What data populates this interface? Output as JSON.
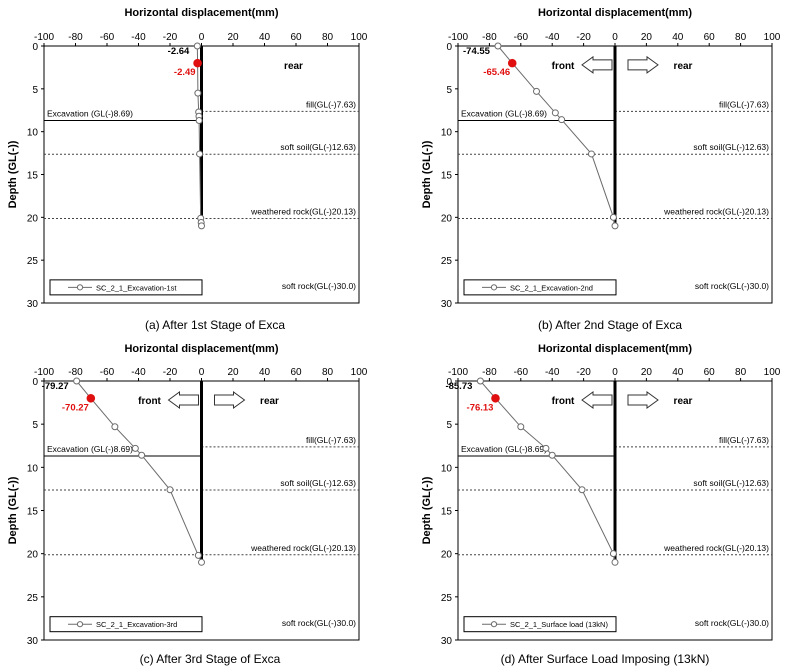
{
  "figure": {
    "axis_title_x": "Horizontal displacement(mm)",
    "axis_title_y": "Depth (GL(-))"
  },
  "colors": {
    "wall": "#000000",
    "curve": "#6b6b6b",
    "marker_fill": "#ffffff",
    "highlight": "#e01010",
    "dotted_line": "#444444"
  },
  "icons": [
    "arrow-left-icon",
    "arrow-right-icon"
  ],
  "chart_data": [
    {
      "type": "line",
      "caption": "(a) After 1st Stage of Exca",
      "xlabel": "Horizontal displacement(mm)",
      "ylabel": "Depth (GL(-))",
      "xlim": [
        -100,
        100
      ],
      "ylim": [
        30,
        0
      ],
      "xticks": [
        -100,
        -80,
        -60,
        -40,
        -20,
        0,
        20,
        40,
        60,
        80,
        100
      ],
      "yticks": [
        0,
        5,
        10,
        15,
        20,
        25,
        30
      ],
      "legend": {
        "label": "SC_2_1_Excavation-1st",
        "position": "bottom-left"
      },
      "series": [
        {
          "name": "SC_2_1_Excavation-1st",
          "x": [
            -2.64,
            -2.49,
            -2.3,
            -1.8,
            -1.6,
            -1.5,
            -1.2,
            -0.5,
            -0.2,
            0
          ],
          "y": [
            0,
            2,
            5.5,
            7.7,
            8.2,
            8.7,
            12.6,
            20.1,
            20.6,
            21
          ]
        }
      ],
      "annotations": [
        {
          "text": "-2.64",
          "x": -2.64,
          "y": 0,
          "highlight": false
        },
        {
          "text": "-2.49",
          "x": -2.49,
          "y": 2,
          "highlight": true
        }
      ],
      "direction_labels": {
        "front": "",
        "rear": "rear",
        "show_arrows": false
      },
      "excavation": {
        "label": "Excavation (GL(-)8.69)",
        "depth": 8.69
      },
      "layers": [
        {
          "label": "fill(GL(-)7.63)",
          "depth": 7.63
        },
        {
          "label": "soft soil(GL(-)12.63)",
          "depth": 12.63
        },
        {
          "label": "weathered rock(GL(-)20.13)",
          "depth": 20.13
        },
        {
          "label": "soft rock(GL(-)30.0)",
          "depth": 30
        }
      ]
    },
    {
      "type": "line",
      "caption": "(b) After 2nd Stage of Exca",
      "xlabel": "Horizontal displacement(mm)",
      "ylabel": "Depth (GL(-))",
      "xlim": [
        -100,
        100
      ],
      "ylim": [
        30,
        0
      ],
      "xticks": [
        -100,
        -80,
        -60,
        -40,
        -20,
        0,
        20,
        40,
        60,
        80,
        100
      ],
      "yticks": [
        0,
        5,
        10,
        15,
        20,
        25,
        30
      ],
      "legend": {
        "label": "SC_2_1_Excavation-2nd",
        "position": "bottom-left"
      },
      "series": [
        {
          "name": "SC_2_1_Excavation-2nd",
          "x": [
            -74.55,
            -65.46,
            -50,
            -38,
            -34,
            -15,
            -1,
            0
          ],
          "y": [
            0,
            2,
            5.3,
            7.8,
            8.6,
            12.6,
            20,
            21
          ]
        }
      ],
      "annotations": [
        {
          "text": "-74.55",
          "x": -74.55,
          "y": 0,
          "highlight": false
        },
        {
          "text": "-65.46",
          "x": -65.46,
          "y": 2,
          "highlight": true
        }
      ],
      "direction_labels": {
        "front": "front",
        "rear": "rear",
        "show_arrows": true
      },
      "excavation": {
        "label": "Excavation (GL(-)8.69)",
        "depth": 8.69
      },
      "layers": [
        {
          "label": "fill(GL(-)7.63)",
          "depth": 7.63
        },
        {
          "label": "soft soil(GL(-)12.63)",
          "depth": 12.63
        },
        {
          "label": "weathered rock(GL(-)20.13)",
          "depth": 20.13
        },
        {
          "label": "soft rock(GL(-)30.0)",
          "depth": 30
        }
      ]
    },
    {
      "type": "line",
      "caption": "(c) After 3rd Stage of Exca",
      "xlabel": "Horizontal displacement(mm)",
      "ylabel": "Depth (GL(-))",
      "xlim": [
        -100,
        100
      ],
      "ylim": [
        30,
        0
      ],
      "xticks": [
        -100,
        -80,
        -60,
        -40,
        -20,
        0,
        20,
        40,
        60,
        80,
        100
      ],
      "yticks": [
        0,
        5,
        10,
        15,
        20,
        25,
        30
      ],
      "legend": {
        "label": "SC_2_1_Excavation-3rd",
        "position": "bottom-left"
      },
      "series": [
        {
          "name": "SC_2_1_Excavation-3rd",
          "x": [
            -79.27,
            -70.27,
            -55,
            -42,
            -38,
            -20,
            -2,
            0
          ],
          "y": [
            0,
            2,
            5.3,
            7.8,
            8.6,
            12.6,
            20.2,
            21
          ]
        }
      ],
      "annotations": [
        {
          "text": "-79.27",
          "x": -79.27,
          "y": 0,
          "highlight": false
        },
        {
          "text": "-70.27",
          "x": -70.27,
          "y": 2,
          "highlight": true
        }
      ],
      "direction_labels": {
        "front": "front",
        "rear": "rear",
        "show_arrows": true
      },
      "excavation": {
        "label": "Excavation (GL(-)8.69)",
        "depth": 8.69
      },
      "layers": [
        {
          "label": "fill(GL(-)7.63)",
          "depth": 7.63
        },
        {
          "label": "soft soil(GL(-)12.63)",
          "depth": 12.63
        },
        {
          "label": "weathered rock(GL(-)20.13)",
          "depth": 20.13
        },
        {
          "label": "soft rock(GL(-)30.0)",
          "depth": 30
        }
      ]
    },
    {
      "type": "line",
      "caption": "(d) After Surface Load Imposing (13kN)",
      "xlabel": "Horizontal displacement(mm)",
      "ylabel": "Depth (GL(-))",
      "xlim": [
        -100,
        100
      ],
      "ylim": [
        30,
        0
      ],
      "xticks": [
        -100,
        -80,
        -60,
        -40,
        -20,
        0,
        20,
        40,
        60,
        80,
        100
      ],
      "yticks": [
        0,
        5,
        10,
        15,
        20,
        25,
        30
      ],
      "legend": {
        "label": "SC_2_1_Surface load (13kN)",
        "position": "bottom-left"
      },
      "series": [
        {
          "name": "SC_2_1_Surface load (13kN)",
          "x": [
            -85.73,
            -76.13,
            -60,
            -44,
            -40,
            -21,
            -1,
            0
          ],
          "y": [
            0,
            2,
            5.3,
            7.8,
            8.6,
            12.6,
            20,
            21
          ]
        }
      ],
      "annotations": [
        {
          "text": "-85.73",
          "x": -85.73,
          "y": 0,
          "highlight": false
        },
        {
          "text": "-76.13",
          "x": -76.13,
          "y": 2,
          "highlight": true
        }
      ],
      "direction_labels": {
        "front": "front",
        "rear": "rear",
        "show_arrows": true
      },
      "excavation": {
        "label": "Excavation (GL(-)8.69)",
        "depth": 8.69
      },
      "layers": [
        {
          "label": "fill(GL(-)7.63)",
          "depth": 7.63
        },
        {
          "label": "soft soil(GL(-)12.63)",
          "depth": 12.63
        },
        {
          "label": "weathered rock(GL(-)20.13)",
          "depth": 20.13
        },
        {
          "label": "soft rock(GL(-)30.0)",
          "depth": 30
        }
      ]
    }
  ]
}
